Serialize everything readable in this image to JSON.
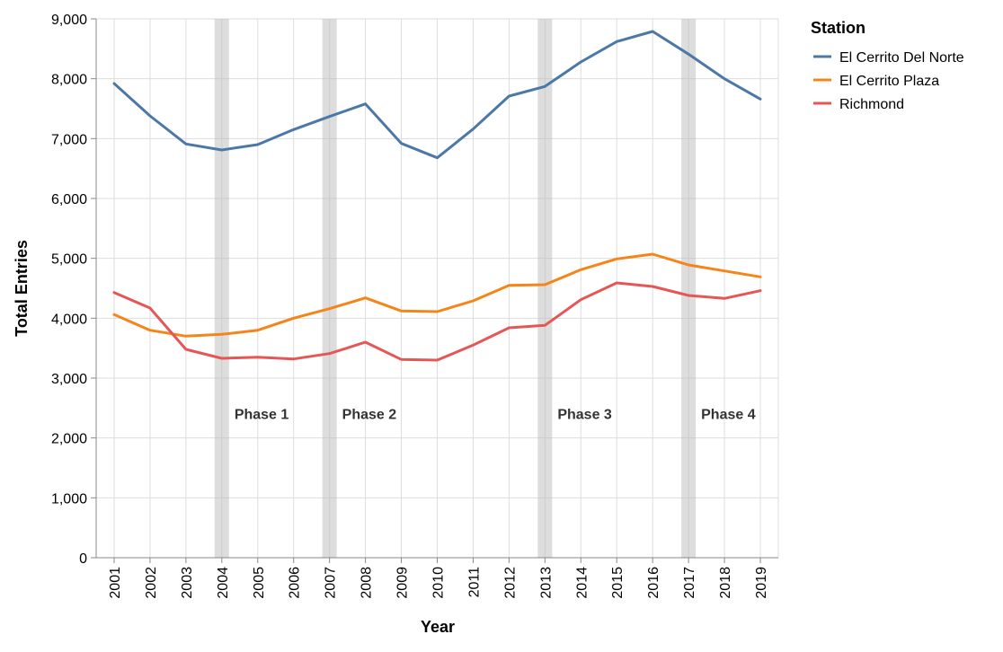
{
  "chart_data": {
    "type": "line",
    "xlabel": "Year",
    "ylabel": "Total Entries",
    "ylim": [
      0,
      9000
    ],
    "yticks": [
      0,
      1000,
      2000,
      3000,
      4000,
      5000,
      6000,
      7000,
      8000,
      9000
    ],
    "ytick_labels": [
      "0",
      "1,000",
      "2,000",
      "3,000",
      "4,000",
      "5,000",
      "6,000",
      "7,000",
      "8,000",
      "9,000"
    ],
    "x": [
      "2001",
      "2002",
      "2003",
      "2004",
      "2005",
      "2006",
      "2007",
      "2008",
      "2009",
      "2010",
      "2011",
      "2012",
      "2013",
      "2014",
      "2015",
      "2016",
      "2017",
      "2018",
      "2019"
    ],
    "grid": true,
    "legend": {
      "title": "Station",
      "placement": "top-right"
    },
    "series": [
      {
        "name": "El Cerrito Del Norte",
        "color": "#4c78a8",
        "values": [
          7920,
          7380,
          6910,
          6810,
          6900,
          7150,
          7370,
          7580,
          6920,
          6680,
          7160,
          7710,
          7870,
          8280,
          8620,
          8790,
          8410,
          8000,
          7660
        ]
      },
      {
        "name": "El Cerrito Plaza",
        "color": "#f58518",
        "values": [
          4060,
          3800,
          3700,
          3730,
          3800,
          4000,
          4160,
          4340,
          4120,
          4110,
          4290,
          4550,
          4560,
          4810,
          4990,
          5070,
          4890,
          4790,
          4690
        ]
      },
      {
        "name": "Richmond",
        "color": "#e45756",
        "values": [
          4430,
          4170,
          3480,
          3330,
          3350,
          3320,
          3410,
          3600,
          3310,
          3300,
          3550,
          3840,
          3880,
          4310,
          4590,
          4530,
          4380,
          4330,
          4460
        ]
      }
    ],
    "annotations": [
      {
        "band_year": "2004",
        "label": "Phase 1",
        "label_year": "2004"
      },
      {
        "band_year": "2007",
        "label": "Phase 2",
        "label_year": "2007"
      },
      {
        "band_year": "2013",
        "label": "Phase 3",
        "label_year": "2013"
      },
      {
        "band_year": "2017",
        "label": "Phase 4",
        "label_year": "2017"
      }
    ],
    "annotation_label_value": 2200,
    "band_color": "#bbbbbb"
  }
}
